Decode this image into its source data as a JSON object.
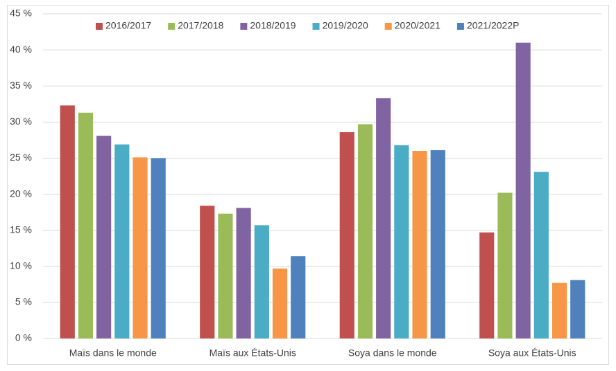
{
  "chart_data": {
    "type": "bar",
    "categories": [
      "Maïs dans le monde",
      "Maïs aux États-Unis",
      "Soya dans le monde",
      "Soya aux États-Unis"
    ],
    "series": [
      {
        "name": "2016/2017",
        "color": "#c0504d",
        "values": [
          32.3,
          18.4,
          28.6,
          14.7
        ]
      },
      {
        "name": "2017/2018",
        "color": "#9bbb59",
        "values": [
          31.3,
          17.3,
          29.7,
          20.2
        ]
      },
      {
        "name": "2018/2019",
        "color": "#8064a2",
        "values": [
          28.1,
          18.1,
          33.3,
          41.0
        ]
      },
      {
        "name": "2019/2020",
        "color": "#4bacc6",
        "values": [
          26.9,
          15.7,
          26.8,
          23.1
        ]
      },
      {
        "name": "2020/2021",
        "color": "#f79646",
        "values": [
          25.1,
          9.7,
          26.0,
          7.7
        ]
      },
      {
        "name": "2021/2022P",
        "color": "#4f81bd",
        "values": [
          25.0,
          11.4,
          26.1,
          8.1
        ]
      }
    ],
    "ylim": [
      0,
      45
    ],
    "yticks": [
      {
        "value": 0,
        "label": "0 %"
      },
      {
        "value": 5,
        "label": "5 %"
      },
      {
        "value": 10,
        "label": "10 %"
      },
      {
        "value": 15,
        "label": "15 %"
      },
      {
        "value": 20,
        "label": "20 %"
      },
      {
        "value": 25,
        "label": "25 %"
      },
      {
        "value": 30,
        "label": "30 %"
      },
      {
        "value": 35,
        "label": "35 %"
      },
      {
        "value": 40,
        "label": "40 %"
      },
      {
        "value": 45,
        "label": "45 %"
      }
    ],
    "grid": true,
    "legend": "top"
  }
}
